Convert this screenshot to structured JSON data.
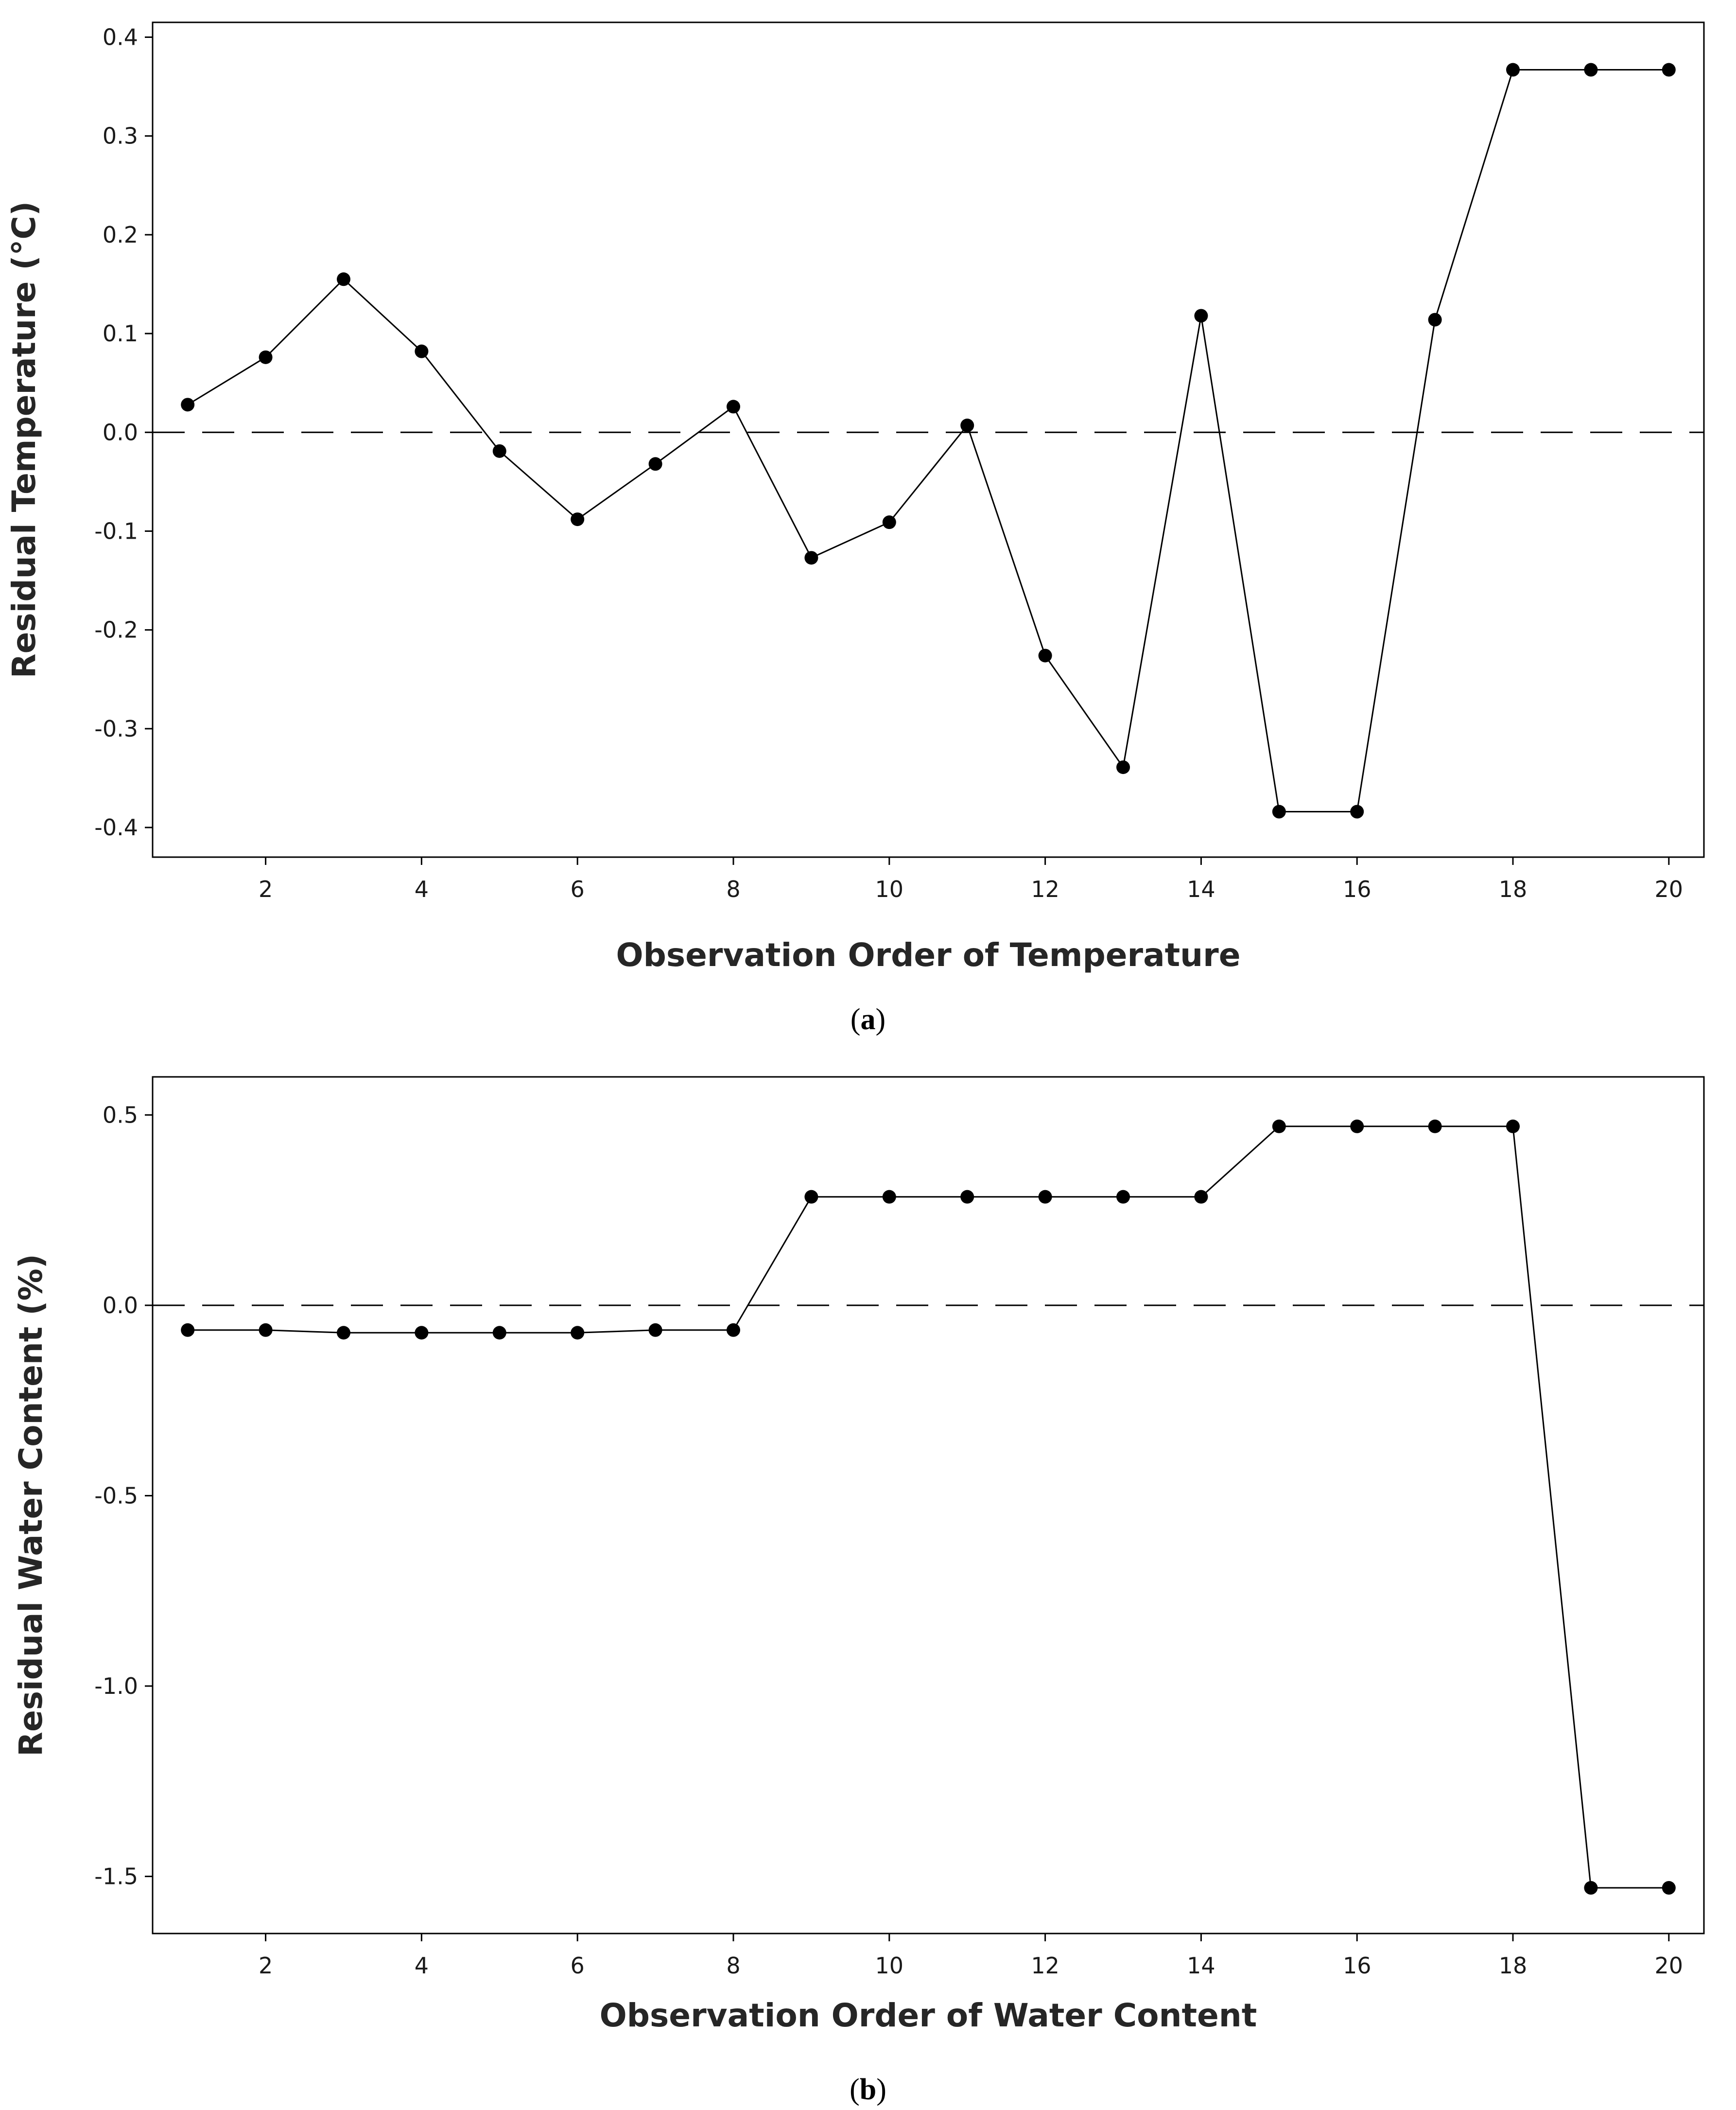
{
  "chart_data": [
    {
      "id": "a",
      "type": "line",
      "caption_letter": "a",
      "title": "",
      "xlabel": "Observation Order of Temperature",
      "ylabel": "Residual Temperature (°C)",
      "xlim": [
        0.55,
        20.45
      ],
      "ylim": [
        -0.43,
        0.415
      ],
      "xticks": [
        2,
        4,
        6,
        8,
        10,
        12,
        14,
        16,
        18,
        20
      ],
      "yticks": [
        -0.4,
        -0.3,
        -0.2,
        -0.1,
        0.0,
        0.1,
        0.2,
        0.3,
        0.4
      ],
      "ytick_decimals": 1,
      "reference_line": 0,
      "grid": false,
      "series": [
        {
          "name": "Residual Temperature",
          "x": [
            1,
            2,
            3,
            4,
            5,
            6,
            7,
            8,
            9,
            10,
            11,
            12,
            13,
            14,
            15,
            16,
            17,
            18,
            19,
            20
          ],
          "values": [
            0.028,
            0.076,
            0.155,
            0.082,
            -0.019,
            -0.088,
            -0.032,
            0.026,
            -0.127,
            -0.091,
            0.007,
            -0.226,
            -0.339,
            0.118,
            -0.384,
            -0.384,
            0.114,
            0.367,
            0.367,
            0.367
          ]
        }
      ]
    },
    {
      "id": "b",
      "type": "line",
      "caption_letter": "b",
      "title": "",
      "xlabel": "Observation Order of Water Content",
      "ylabel": "Residual Water Content (%)",
      "xlim": [
        0.55,
        20.45
      ],
      "ylim": [
        -1.65,
        0.6
      ],
      "xticks": [
        2,
        4,
        6,
        8,
        10,
        12,
        14,
        16,
        18,
        20
      ],
      "yticks": [
        -1.5,
        -1.0,
        -0.5,
        0.0,
        0.5
      ],
      "ytick_decimals": 1,
      "reference_line": 0,
      "grid": false,
      "series": [
        {
          "name": "Residual Water Content",
          "x": [
            1,
            2,
            3,
            4,
            5,
            6,
            7,
            8,
            9,
            10,
            11,
            12,
            13,
            14,
            15,
            16,
            17,
            18,
            19,
            20
          ],
          "values": [
            -0.065,
            -0.065,
            -0.072,
            -0.072,
            -0.072,
            -0.072,
            -0.065,
            -0.065,
            0.285,
            0.285,
            0.285,
            0.285,
            0.285,
            0.285,
            0.47,
            0.47,
            0.47,
            0.47,
            -1.53,
            -1.53
          ]
        }
      ]
    }
  ]
}
